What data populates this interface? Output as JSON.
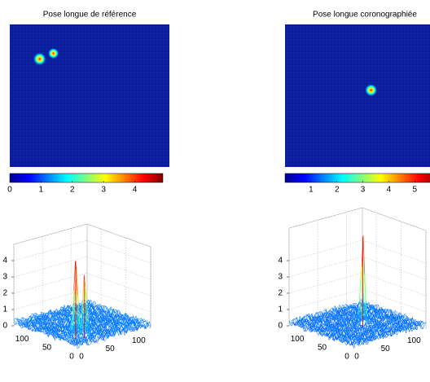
{
  "chart_data": [
    {
      "type": "heatmap",
      "title": "Pose longue de référence",
      "xlim": [
        0,
        128
      ],
      "ylim": [
        0,
        128
      ],
      "clim": [
        0,
        4.9
      ],
      "colorbar_ticks": [
        0,
        1,
        2,
        3,
        4
      ],
      "peaks": [
        {
          "x": 24,
          "y": 31,
          "value": 4.8
        },
        {
          "x": 35,
          "y": 26,
          "value": 3.9
        }
      ],
      "surface": {
        "zlim": [
          0,
          5
        ],
        "zticks": [
          0,
          1,
          2,
          3,
          4
        ],
        "xticks": [
          0,
          50,
          100
        ],
        "yticks": [
          0,
          50,
          100
        ]
      }
    },
    {
      "type": "heatmap",
      "title": "Pose longue coronographiée",
      "xlim": [
        0,
        128
      ],
      "ylim": [
        0,
        128
      ],
      "clim": [
        0,
        5.9
      ],
      "colorbar_ticks": [
        1,
        2,
        3,
        4,
        5
      ],
      "peaks": [
        {
          "x": 69,
          "y": 59,
          "value": 5.5
        }
      ],
      "surface": {
        "zlim": [
          0,
          6
        ],
        "zticks": [
          0,
          1,
          2,
          3,
          4
        ],
        "xticks": [
          0,
          50,
          100
        ],
        "yticks": [
          0,
          50,
          100
        ]
      }
    }
  ]
}
